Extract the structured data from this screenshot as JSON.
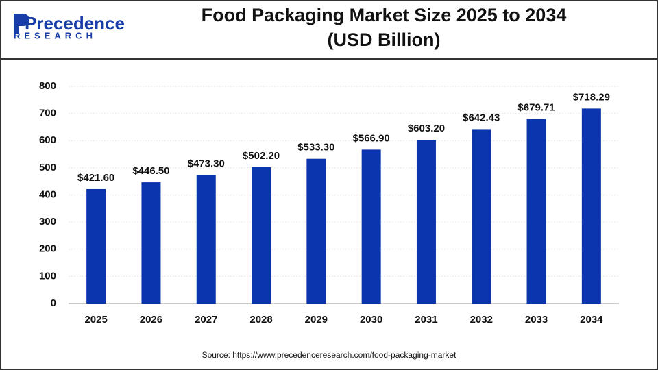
{
  "logo": {
    "name": "Precedence",
    "tagline": "RESEARCH"
  },
  "chart_data": {
    "type": "bar",
    "title": "Food Packaging Market Size 2025 to 2034",
    "subtitle": "(USD Billion)",
    "categories": [
      "2025",
      "2026",
      "2027",
      "2028",
      "2029",
      "2030",
      "2031",
      "2032",
      "2033",
      "2034"
    ],
    "values": [
      421.6,
      446.5,
      473.3,
      502.2,
      533.3,
      566.9,
      603.2,
      642.43,
      679.71,
      718.29
    ],
    "value_labels": [
      "$421.60",
      "$446.50",
      "$473.30",
      "$502.20",
      "$533.30",
      "$566.90",
      "$603.20",
      "$642.43",
      "$679.71",
      "$718.29"
    ],
    "color": "#0b35ad",
    "ylim": [
      0,
      800
    ],
    "yticks": [
      0,
      100,
      200,
      300,
      400,
      500,
      600,
      700,
      800
    ],
    "grid": true,
    "source": "Source: https://www.precedenceresearch.com/food-packaging-market"
  }
}
